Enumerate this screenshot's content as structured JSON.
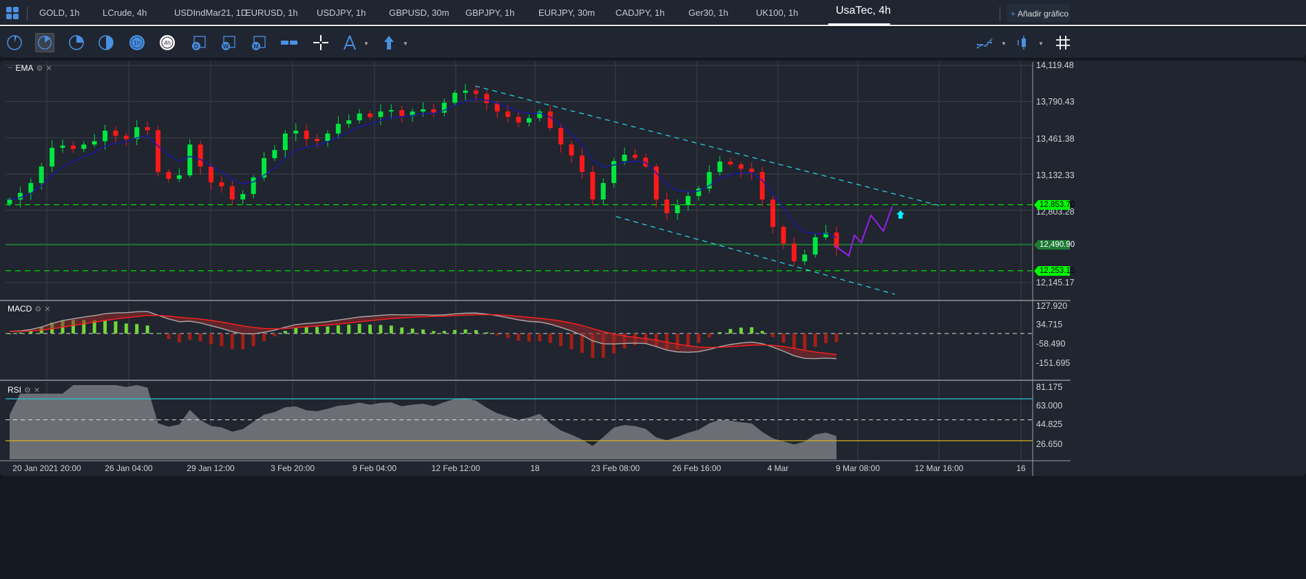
{
  "tabs": [
    {
      "label": "GOLD, 1h"
    },
    {
      "label": "LCrude, 4h"
    },
    {
      "label": "USDIndMar21, 1D"
    },
    {
      "label": "EURUSD, 1h"
    },
    {
      "label": "USDJPY, 1h"
    },
    {
      "label": "GBPUSD, 30m"
    },
    {
      "label": "GBPJPY, 1h"
    },
    {
      "label": "EURJPY, 30m"
    },
    {
      "label": "CADJPY, 1h"
    },
    {
      "label": "Ger30, 1h"
    },
    {
      "label": "UK100, 1h"
    },
    {
      "label": "UsaTec, 4h",
      "active": true
    }
  ],
  "add_chart": {
    "plus": "+",
    "label": "Añadir gráfico"
  },
  "toolbar": {
    "timeframes": [
      {
        "icon": "clock-1m-icon"
      },
      {
        "icon": "clock-5m-icon",
        "selected": true
      },
      {
        "icon": "clock-15m-icon"
      },
      {
        "icon": "clock-30m-icon"
      },
      {
        "icon": "clock-1h-icon",
        "text": "1h"
      },
      {
        "icon": "clock-4h-icon",
        "text": "4h",
        "active": true
      },
      {
        "icon": "calendar-day-icon",
        "text": "D"
      },
      {
        "icon": "calendar-week-icon",
        "text": "W"
      },
      {
        "icon": "calendar-month-icon",
        "text": "M"
      }
    ],
    "tools": [
      "range-icon",
      "crosshair-icon",
      "compass-drawing-icon",
      "arrow-up-icon"
    ],
    "right_tools": [
      "indicators-icon",
      "candlestick-type-icon",
      "grid-icon"
    ]
  },
  "accent": "#4a90e2",
  "panes": {
    "main": {
      "label": "EMA"
    },
    "macd": {
      "label": "MACD"
    },
    "rsi": {
      "label": "RSI"
    }
  },
  "chart_data": {
    "type": "candlestick",
    "symbol": "UsaTec, 4h",
    "price_axis": [
      "14,119.48",
      "13,790.43",
      "13,461.38",
      "13,132.33",
      "12,803.28",
      "12,145.17"
    ],
    "ylim": [
      12010,
      14160
    ],
    "closes": [
      12900,
      12960,
      13050,
      13200,
      13370,
      13390,
      13360,
      13400,
      13430,
      13526,
      13480,
      13450,
      13557,
      13530,
      13150,
      13088,
      13120,
      13400,
      13200,
      13057,
      13020,
      12901,
      12950,
      13100,
      13276,
      13350,
      13500,
      13526,
      13450,
      13432,
      13500,
      13588,
      13620,
      13682,
      13650,
      13700,
      13713,
      13660,
      13700,
      13720,
      13690,
      13780,
      13870,
      13890,
      13860,
      13776,
      13700,
      13651,
      13600,
      13640,
      13700,
      13550,
      13401,
      13300,
      13151,
      12901,
      13050,
      13250,
      13307,
      13280,
      13200,
      12900,
      12776,
      12850,
      12932,
      13000,
      13150,
      13245,
      13220,
      13180,
      13150,
      12900,
      12651,
      12500,
      12339,
      12400,
      12557,
      12600,
      12464
    ],
    "price_lines": [
      {
        "value": 12853.7,
        "label": "12,853.70",
        "style": "dashed"
      },
      {
        "value": 12490.9,
        "label": "12,490.90",
        "style": "solid"
      },
      {
        "value": 12253.15,
        "label": "12,253.15",
        "style": "dashed"
      }
    ],
    "x_ticks": [
      "20 Jan 2021 20:00",
      "26 Jan 04:00",
      "29 Jan 12:00",
      "3 Feb 20:00",
      "9 Feb 04:00",
      "12 Feb 12:00",
      "18",
      "23 Feb 08:00",
      "26 Feb 16:00",
      "4 Mar",
      "9 Mar 08:00",
      "12 Mar 16:00",
      "16"
    ],
    "macd_axis": [
      "127.920",
      "34.715",
      "-58.490",
      "-151.695"
    ],
    "rsi_axis": [
      "81.175",
      "63.000",
      "44.825",
      "26.650"
    ],
    "rsi_levels": [
      70,
      50,
      30
    ],
    "colors": {
      "up": "#00e640",
      "down": "#ff1a1a",
      "ema": "#1a1aa8",
      "trend": "#2ad0e0",
      "level": "#00ff00",
      "forecast": "#9b1fe8",
      "signal": "#ff2020",
      "rsi_high": "#27c5d6",
      "rsi_low": "#d4b21e"
    }
  }
}
